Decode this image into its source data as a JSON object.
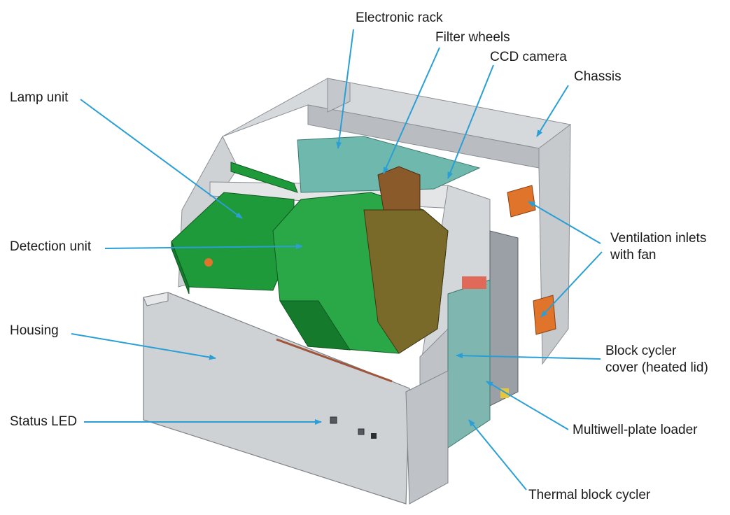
{
  "labels": {
    "electronic_rack": "Electronic rack",
    "filter_wheels": "Filter wheels",
    "ccd_camera": "CCD camera",
    "chassis": "Chassis",
    "lamp_unit": "Lamp unit",
    "ventilation": "Ventilation inlets\nwith fan",
    "detection_unit": "Detection unit",
    "housing": "Housing",
    "block_cycler_cover": "Block cycler\ncover (heated lid)",
    "status_led": "Status LED",
    "multiwell_plate_loader": "Multiwell-plate loader",
    "thermal_block_cycler": "Thermal block cycler"
  },
  "colors": {
    "callout": "#2a9fd6",
    "frame": "#c9cccf",
    "module_green": "#1f9a3a",
    "module_orange": "#e0742a",
    "module_teal": "#6fb8ad"
  }
}
